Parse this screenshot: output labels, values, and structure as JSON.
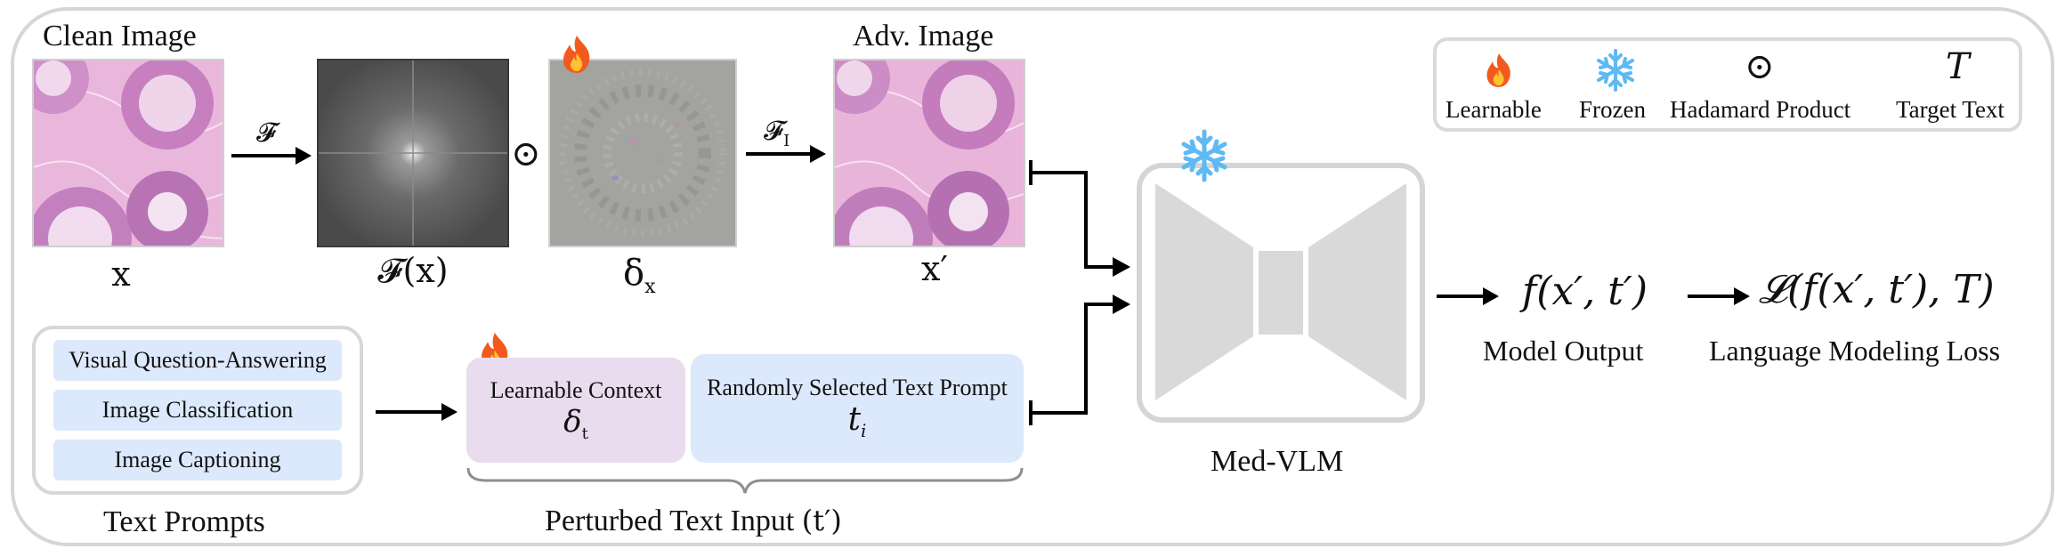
{
  "labels": {
    "clean_image": "Clean Image",
    "adv_image": "Adv. Image",
    "text_prompts": "Text Prompts",
    "perturbed_text_input": "Perturbed Text Input",
    "perturbed_text_symbol": "(t′)",
    "med_vlm": "Med-VLM",
    "model_output": "Model Output",
    "language_modeling_loss": "Language Modeling Loss"
  },
  "symbols": {
    "x": "x",
    "fx": "𝓕(x)",
    "delta_x": "δ",
    "delta_x_sub": "x",
    "x_prime": "x′",
    "fourier": "𝓕",
    "inverse_fourier": "𝓕",
    "inverse_fourier_sub": "I",
    "hadamard": "⊙",
    "model_output_expr": "f(x′, t′)",
    "loss_expr": "𝓛(f(x′, t′), T)"
  },
  "legend": {
    "items": [
      {
        "label": "Learnable",
        "icon": "fire-icon"
      },
      {
        "label": "Frozen",
        "icon": "snowflake-icon"
      },
      {
        "label": "Hadamard Product",
        "icon": "hadamard-icon",
        "glyph": "⊙"
      },
      {
        "label": "Target Text",
        "icon": "target-text-icon",
        "glyph": "T"
      }
    ]
  },
  "text_prompts": {
    "items": [
      "Visual Question-Answering",
      "Image Classification",
      "Image Captioning"
    ]
  },
  "learnable_context": {
    "label": "Learnable Context",
    "symbol": "δ",
    "symbol_sub": "t"
  },
  "random_prompt": {
    "label": "Randomly Selected Text Prompt",
    "symbol": "t",
    "symbol_sub": "i"
  },
  "colors": {
    "frame": "#d6d6d6",
    "model": "#d9d9d9",
    "prompt_blue": "#dce8fb",
    "context_purple": "#e8dcee",
    "fire": "#f25a1d",
    "snow": "#5fb9f2"
  }
}
